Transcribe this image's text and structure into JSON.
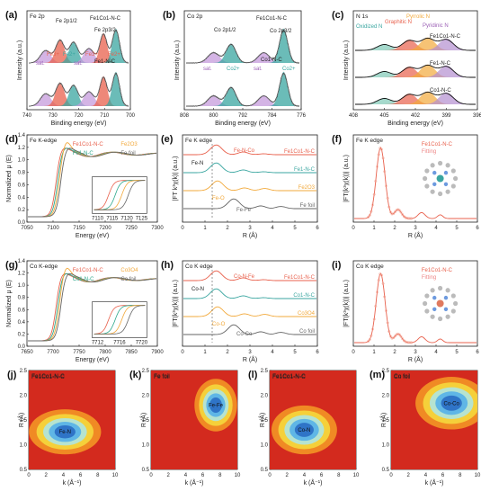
{
  "panels": {
    "a": {
      "label": "(a)",
      "title": "Fe 2p",
      "xlabel": "Binding energy (eV)",
      "ylabel": "Intensity (a.u.)",
      "xticks": [
        "740",
        "730",
        "720",
        "710",
        "700"
      ],
      "peaks": [
        "Fe 2p1/2",
        "Fe 2p3/2"
      ],
      "annotations": [
        "sat.",
        "Fe3+",
        "Fe2+",
        "sat.",
        "Fe3+",
        "Fe2+"
      ],
      "series": [
        "Fe1Co1-N-C",
        "Fe1-N-C"
      ]
    },
    "b": {
      "label": "(b)",
      "title": "Co 2p",
      "xlabel": "Binding energy (eV)",
      "ylabel": "Intensity (a.u.)",
      "xticks": [
        "808",
        "800",
        "792",
        "784",
        "776"
      ],
      "peaks": [
        "Co 2p1/2",
        "Co 2p3/2"
      ],
      "annotations": [
        "sat.",
        "Co2+",
        "sat.",
        "Co2+"
      ],
      "series": [
        "Fe1Co1-N-C",
        "Co1-N-C"
      ]
    },
    "c": {
      "label": "(c)",
      "title": "N 1s",
      "xlabel": "Binding energy (eV)",
      "ylabel": "Intensity (a.u.)",
      "xticks": [
        "408",
        "405",
        "402",
        "399",
        "396"
      ],
      "species": [
        "Oxidized N",
        "Graphitic N",
        "Pyrrolic N",
        "Pyridinic N"
      ],
      "series": [
        "Fe1Co1-N-C",
        "Fe1-N-C",
        "Co1-N-C"
      ]
    },
    "d": {
      "label": "(d)",
      "title": "Fe K-edge",
      "xlabel": "Energy (eV)",
      "ylabel": "Normalized μ (E)",
      "xticks": [
        "7050",
        "7100",
        "7150",
        "7200",
        "7250",
        "7300"
      ],
      "yticks": [
        "0.0",
        "0.2",
        "0.4",
        "0.6",
        "0.8",
        "1.0",
        "1.2",
        "1.4"
      ],
      "inset_ticks": [
        "7110",
        "7115",
        "7120",
        "7125"
      ],
      "legend": [
        "Fe1Co1-N-C",
        "Fe2O3",
        "Fe1-N-C",
        "Fe foil"
      ]
    },
    "e": {
      "label": "(e)",
      "title": "Fe K edge",
      "xlabel": "R (Å)",
      "ylabel": "|FT k³χ(k)| (a.u.)",
      "xticks": [
        "0",
        "1",
        "2",
        "3",
        "4",
        "5",
        "6"
      ],
      "annotations": [
        "Fe-N-Co",
        "Fe-N",
        "Fe-O",
        "Fe-Fe"
      ],
      "series": [
        "Fe1Co1-N-C",
        "Fe1-N-C",
        "Fe2O3",
        "Fe foil"
      ]
    },
    "f": {
      "label": "(f)",
      "title": "Fe K edge",
      "xlabel": "R (Å)",
      "ylabel": "|FT(k³χ(k))| (a.u.)",
      "xticks": [
        "0",
        "1",
        "2",
        "3",
        "4",
        "5",
        "6"
      ],
      "legend": [
        "Fe1Co1-N-C",
        "Fitting"
      ]
    },
    "g": {
      "label": "(g)",
      "title": "Co K-edge",
      "xlabel": "Energy (eV)",
      "ylabel": "Normalized μ (E)",
      "xticks": [
        "7650",
        "7700",
        "7750",
        "7800",
        "7850",
        "7900"
      ],
      "yticks": [
        "0.0",
        "0.2",
        "0.4",
        "0.6",
        "0.8",
        "1.0",
        "1.2",
        "1.4"
      ],
      "inset_ticks": [
        "7712",
        "7716",
        "7720"
      ],
      "legend": [
        "Fe1Co1-N-C",
        "Co3O4",
        "Co1-N-C",
        "Co foil"
      ]
    },
    "h": {
      "label": "(h)",
      "title": "Co K edge",
      "xlabel": "R (Å)",
      "ylabel": "|FT(k³χ(k))| (a.u.)",
      "xticks": [
        "0",
        "1",
        "2",
        "3",
        "4",
        "5",
        "6"
      ],
      "annotations": [
        "Co-N-Fe",
        "Co-N",
        "Co-O",
        "Co-Co"
      ],
      "series": [
        "Fe1Co1-N-C",
        "Co1-N-C",
        "Co3O4",
        "Co foil"
      ]
    },
    "i": {
      "label": "(i)",
      "title": "Co K edge",
      "xlabel": "R (Å)",
      "ylabel": "|FT(k³χ(k))| (a.u.)",
      "xticks": [
        "0",
        "1",
        "2",
        "3",
        "4",
        "5",
        "6"
      ],
      "legend": [
        "Fe1Co1-N-C",
        "Fitting"
      ]
    },
    "j": {
      "label": "(j)",
      "title": "Fe1Co1-N-C",
      "blob": "Fe-N",
      "xlabel": "k (Å⁻¹)",
      "ylabel": "R (Å)",
      "xticks": [
        "0",
        "2",
        "4",
        "6",
        "8",
        "10"
      ],
      "yticks": [
        "0.5",
        "1.0",
        "1.5",
        "2.0",
        "2.5"
      ]
    },
    "k": {
      "label": "(k)",
      "title": "Fe foil",
      "blob": "Fe-Fe",
      "xlabel": "k (Å⁻¹)",
      "ylabel": "R (Å)",
      "xticks": [
        "0",
        "2",
        "4",
        "6",
        "8",
        "10"
      ],
      "yticks": [
        "0.5",
        "1.0",
        "1.5",
        "2.0",
        "2.5"
      ]
    },
    "l": {
      "label": "(l)",
      "title": "Fe1Co1-N-C",
      "blob": "Co-N",
      "xlabel": "k (Å⁻¹)",
      "ylabel": "R (Å)",
      "xticks": [
        "0",
        "2",
        "4",
        "6",
        "8",
        "10"
      ],
      "yticks": [
        "0.5",
        "1.0",
        "1.5",
        "2.0",
        "2.5"
      ]
    },
    "m": {
      "label": "(m)",
      "title": "Co foil",
      "blob": "Co-Co",
      "xlabel": "k (Å⁻¹)",
      "ylabel": "R (Å)",
      "xticks": [
        "0",
        "2",
        "4",
        "6",
        "8",
        "10"
      ],
      "yticks": [
        "0.5",
        "1.0",
        "1.5",
        "2.0",
        "2.5"
      ]
    }
  },
  "colors": {
    "red": "#e8604c",
    "green": "#2ea88c",
    "orange": "#f2a93b",
    "gray": "#666666",
    "purple": "#9b5fb5",
    "teal": "#3aa6a0",
    "blue": "#2f6fd1"
  }
}
